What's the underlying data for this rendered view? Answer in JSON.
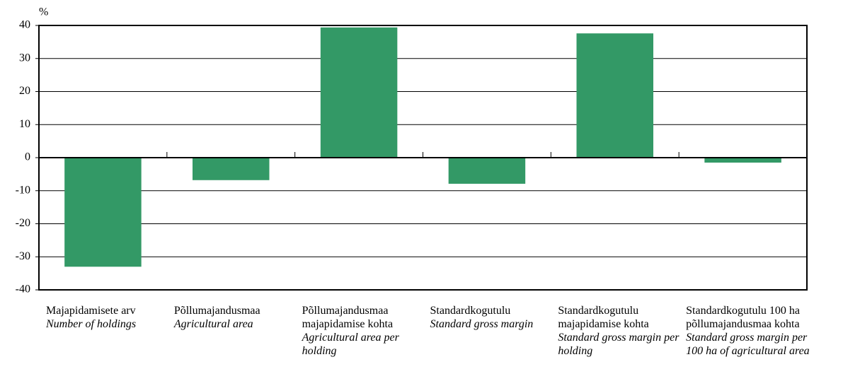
{
  "chart_data": {
    "type": "bar",
    "y_unit": "%",
    "categories": [
      "Majapidamisete arv",
      "Põllumajandusmaa",
      "Põllumajandusmaa majapidamise kohta",
      "Standardkogutulu",
      "Standardkogutulu majapidamise kohta",
      "Standardkogutulu 100 ha põllumajandusmaa kohta"
    ],
    "categories_en": [
      "Number of holdings",
      "Agricultural area",
      "Agricultural area per holding",
      "Standard gross margin",
      "Standard gross margin per holding",
      "Standard gross margin per 100 ha of agricultural area"
    ],
    "values": [
      -33,
      -6.8,
      39.4,
      -7.9,
      37.6,
      -1.5
    ],
    "color": "#339966",
    "ylim": [
      -40,
      40
    ],
    "yticks": [
      -40,
      -30,
      -20,
      -10,
      0,
      10,
      20,
      30,
      40
    ],
    "grid": true
  }
}
